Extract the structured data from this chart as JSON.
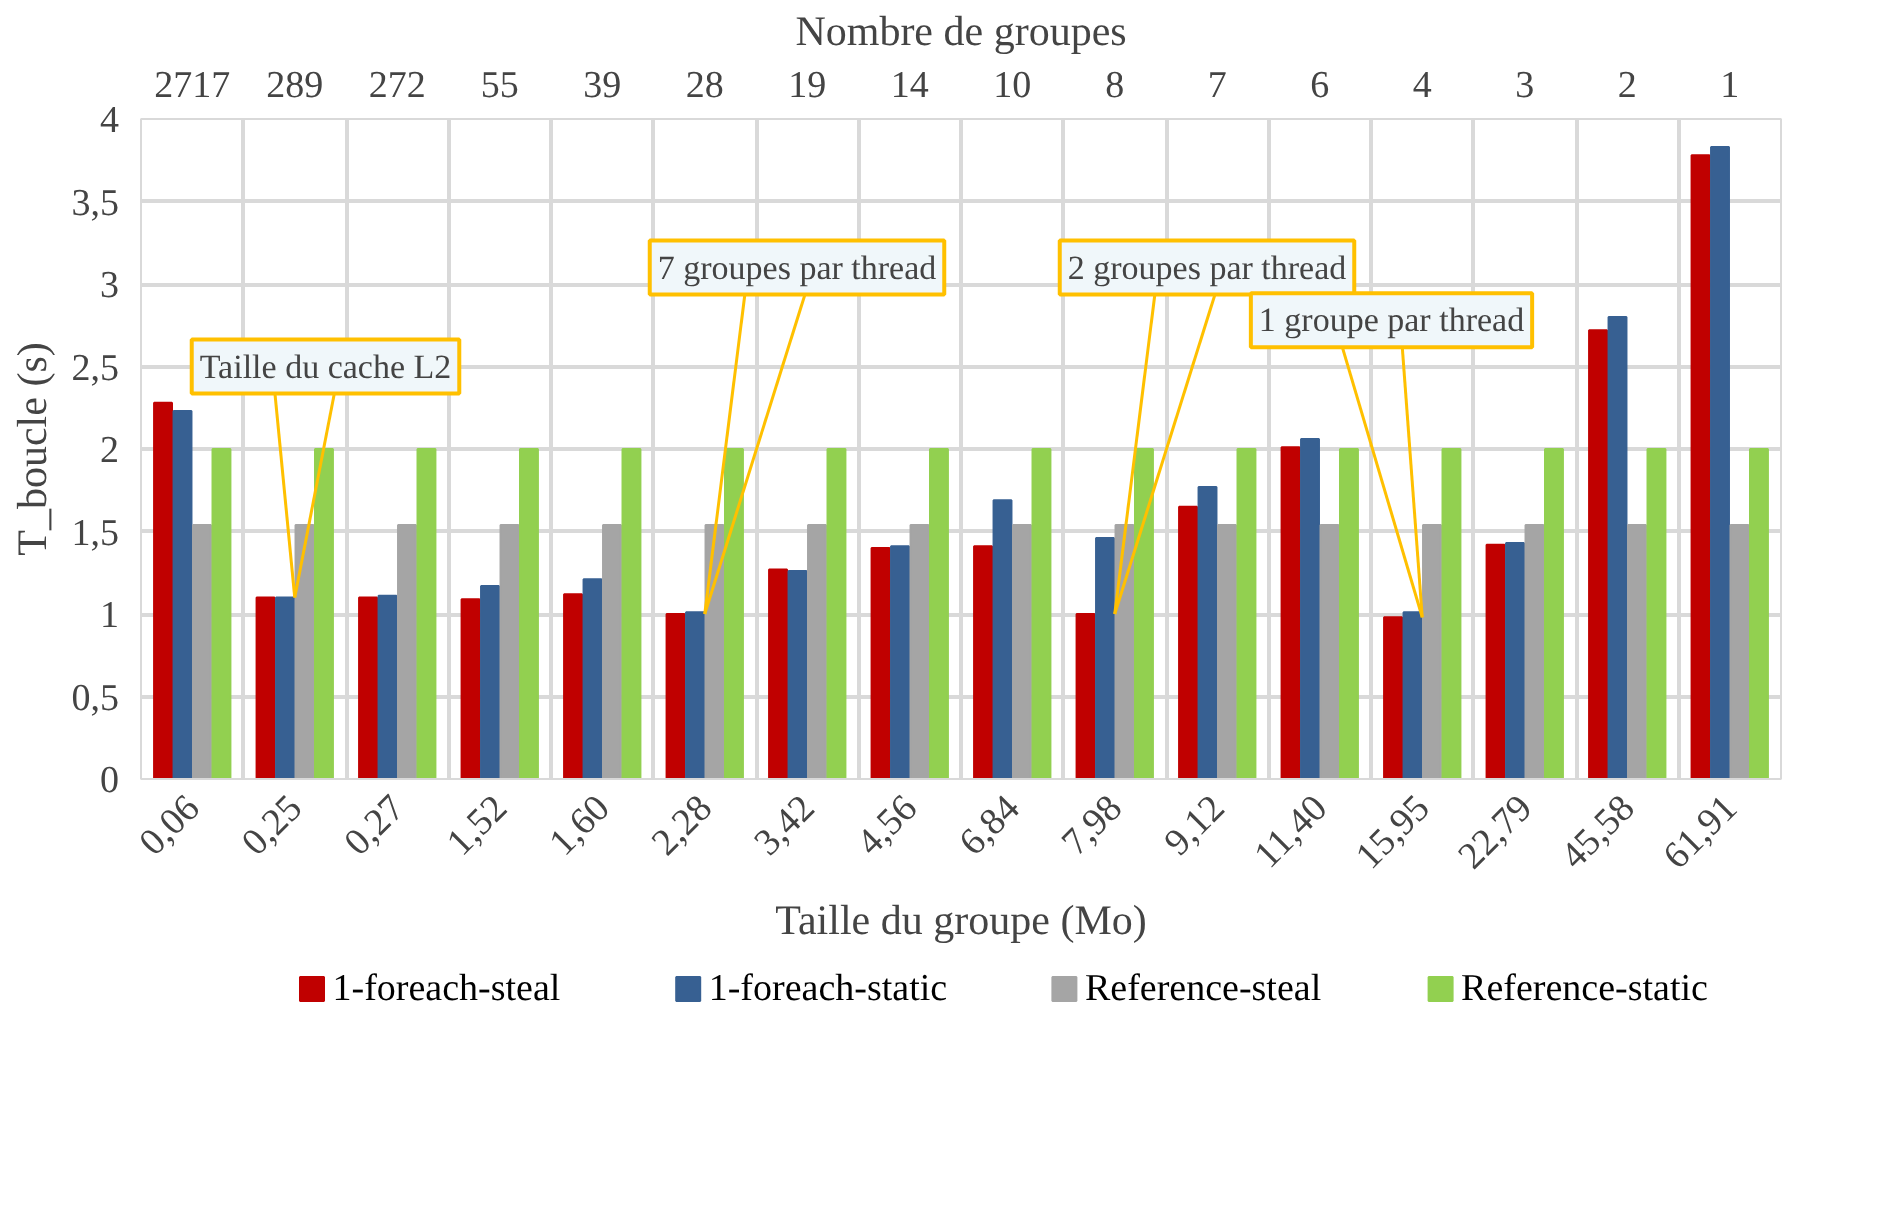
{
  "chart_data": {
    "type": "bar",
    "xlabel": "Taille du groupe (Mo)",
    "ylabel": "T_boucle (s)",
    "x2label": "Nombre de groupes",
    "categories": [
      "0,06",
      "0,25",
      "0,27",
      "1,52",
      "1,60",
      "2,28",
      "3,42",
      "4,56",
      "6,84",
      "7,98",
      "9,12",
      "11,40",
      "15,95",
      "22,79",
      "45,58",
      "61,91"
    ],
    "series": [
      {
        "name": "1-foreach-steal",
        "color": "#c00000",
        "values": [
          2.28,
          1.1,
          1.1,
          1.09,
          1.12,
          1.0,
          1.27,
          1.4,
          1.41,
          1.0,
          1.65,
          2.01,
          0.98,
          1.42,
          2.72,
          3.78
        ]
      },
      {
        "name": "1-foreach-static",
        "color": "#376092",
        "values": [
          2.23,
          1.1,
          1.11,
          1.17,
          1.21,
          1.01,
          1.26,
          1.41,
          1.69,
          1.46,
          1.77,
          2.06,
          1.01,
          1.43,
          2.8,
          3.83
        ]
      },
      {
        "name": "Reference-steal",
        "color": "#a5a5a5",
        "values": [
          1.54,
          1.54,
          1.54,
          1.54,
          1.54,
          1.54,
          1.54,
          1.54,
          1.54,
          1.54,
          1.54,
          1.54,
          1.54,
          1.54,
          1.54,
          1.54
        ]
      },
      {
        "name": "Reference-static",
        "color": "#92d050",
        "values": [
          2.0,
          2.0,
          2.0,
          2.0,
          2.0,
          2.0,
          2.0,
          2.0,
          2.0,
          2.0,
          2.0,
          2.0,
          2.0,
          2.0,
          2.0,
          2.0
        ]
      }
    ],
    "ylim": [
      0,
      4
    ],
    "yticks": [
      0,
      {
        "value": 0.5,
        "label": "0,5"
      },
      1,
      {
        "value": 1.5,
        "label": "1,5"
      },
      2,
      {
        "value": 2.5,
        "label": "2,5"
      },
      3,
      {
        "value": 3.5,
        "label": "3,5"
      },
      4
    ],
    "annotations": [
      {
        "text": "Taille du cache L2",
        "x": "0,25",
        "y": 1.1
      },
      {
        "text": "7 groupes par thread",
        "x": "2,28",
        "y": 1.0
      },
      {
        "text": "2 groupes par thread",
        "x": "7,98",
        "y": 1.0
      },
      {
        "text": "1 groupe par thread",
        "x": "15,95",
        "y": 0.98
      },
      "2717",
      "289",
      "272",
      "55",
      "39",
      "28",
      "19",
      "14",
      "10",
      "8",
      "7",
      "6",
      "4",
      "3",
      "2",
      "1"
    ],
    "grid": true,
    "legend": "bottom"
  }
}
